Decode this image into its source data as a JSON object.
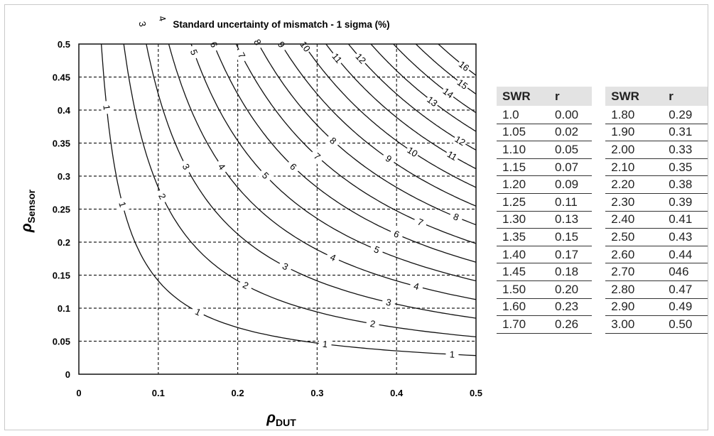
{
  "chart_data": {
    "type": "contour",
    "title": "Standard uncertainty of mismatch - 1 sigma (%)",
    "xlabel": "ρ",
    "xlabel_sub": "DUT",
    "ylabel": "ρ",
    "ylabel_sub": "Sensor",
    "xlim": [
      0,
      0.5
    ],
    "ylim": [
      0,
      0.5
    ],
    "x_ticks": [
      "0",
      "0.1",
      "0.2",
      "0.3",
      "0.4",
      "0.5"
    ],
    "y_ticks": [
      "0",
      "0.05",
      "0.1",
      "0.15",
      "0.2",
      "0.25",
      "0.3",
      "0.35",
      "0.4",
      "0.45",
      "0.5"
    ],
    "grid": "dashed",
    "contours": [
      {
        "level": "1",
        "product": 0.01414,
        "labels": [
          [
            0.035,
            0.42
          ],
          [
            0.055,
            0.26
          ],
          [
            0.15,
            0.095
          ],
          [
            0.31,
            0.046
          ],
          [
            0.47,
            0.03
          ]
        ]
      },
      {
        "level": "2",
        "product": 0.02828,
        "labels": [
          [
            0.05,
            0.455
          ],
          [
            0.105,
            0.27
          ],
          [
            0.21,
            0.132
          ],
          [
            0.37,
            0.076
          ]
        ]
      },
      {
        "level": "3",
        "product": 0.04243,
        "labels": [
          [
            0.08,
            0.49
          ],
          [
            0.135,
            0.3
          ],
          [
            0.26,
            0.155
          ],
          [
            0.39,
            0.105
          ]
        ]
      },
      {
        "level": "4",
        "product": 0.05657,
        "labels": [
          [
            0.105,
            0.49
          ],
          [
            0.18,
            0.305
          ],
          [
            0.32,
            0.177
          ],
          [
            0.425,
            0.133
          ]
        ]
      },
      {
        "level": "5",
        "product": 0.07071,
        "labels": [
          [
            0.145,
            0.455
          ],
          [
            0.235,
            0.3
          ],
          [
            0.375,
            0.188
          ]
        ]
      },
      {
        "level": "6",
        "product": 0.08485,
        "labels": [
          [
            0.17,
            0.495
          ],
          [
            0.27,
            0.315
          ],
          [
            0.4,
            0.208
          ]
        ]
      },
      {
        "level": "7",
        "product": 0.09899,
        "labels": [
          [
            0.205,
            0.49
          ],
          [
            0.3,
            0.33
          ],
          [
            0.43,
            0.23
          ]
        ]
      },
      {
        "level": "8",
        "product": 0.11314,
        "labels": [
          [
            0.225,
            0.495
          ],
          [
            0.32,
            0.355
          ],
          [
            0.475,
            0.24
          ]
        ]
      },
      {
        "level": "9",
        "product": 0.12728,
        "labels": [
          [
            0.255,
            0.49
          ],
          [
            0.39,
            0.33
          ]
        ]
      },
      {
        "level": "10",
        "product": 0.14142,
        "labels": [
          [
            0.285,
            0.475
          ],
          [
            0.42,
            0.335
          ]
        ]
      },
      {
        "level": "11",
        "product": 0.15556,
        "labels": [
          [
            0.325,
            0.445
          ],
          [
            0.47,
            0.33
          ]
        ]
      },
      {
        "level": "12",
        "product": 0.16971,
        "labels": [
          [
            0.355,
            0.48
          ],
          [
            0.48,
            0.35
          ]
        ]
      },
      {
        "level": "13",
        "product": 0.18385,
        "labels": [
          [
            0.445,
            0.41
          ]
        ]
      },
      {
        "level": "14",
        "product": 0.19799,
        "labels": [
          [
            0.465,
            0.43
          ]
        ]
      },
      {
        "level": "15",
        "product": 0.21213,
        "labels": [
          [
            0.483,
            0.445
          ]
        ]
      },
      {
        "level": "16",
        "product": 0.22627,
        "labels": [
          [
            0.485,
            0.465
          ]
        ]
      }
    ]
  },
  "table": {
    "headers": [
      "SWR",
      "r",
      "SWR",
      "r"
    ],
    "rows": [
      [
        "1.0",
        "0.00",
        "1.80",
        "0.29"
      ],
      [
        "1.05",
        "0.02",
        "1.90",
        "0.31"
      ],
      [
        "1.10",
        "0.05",
        "2.00",
        "0.33"
      ],
      [
        "1.15",
        "0.07",
        "2.10",
        "0.35"
      ],
      [
        "1.20",
        "0.09",
        "2.20",
        "0.38"
      ],
      [
        "1.25",
        "0.11",
        "2.30",
        "0.39"
      ],
      [
        "1.30",
        "0.13",
        "2.40",
        "0.41"
      ],
      [
        "1.35",
        "0.15",
        "2.50",
        "0.43"
      ],
      [
        "1.40",
        "0.17",
        "2.60",
        "0.44"
      ],
      [
        "1.45",
        "0.18",
        "2.70",
        "046"
      ],
      [
        "1.50",
        "0.20",
        "2.80",
        "0.47"
      ],
      [
        "1.60",
        "0.23",
        "2.90",
        "0.49"
      ],
      [
        "1.70",
        "0.26",
        "3.00",
        "0.50"
      ]
    ]
  }
}
